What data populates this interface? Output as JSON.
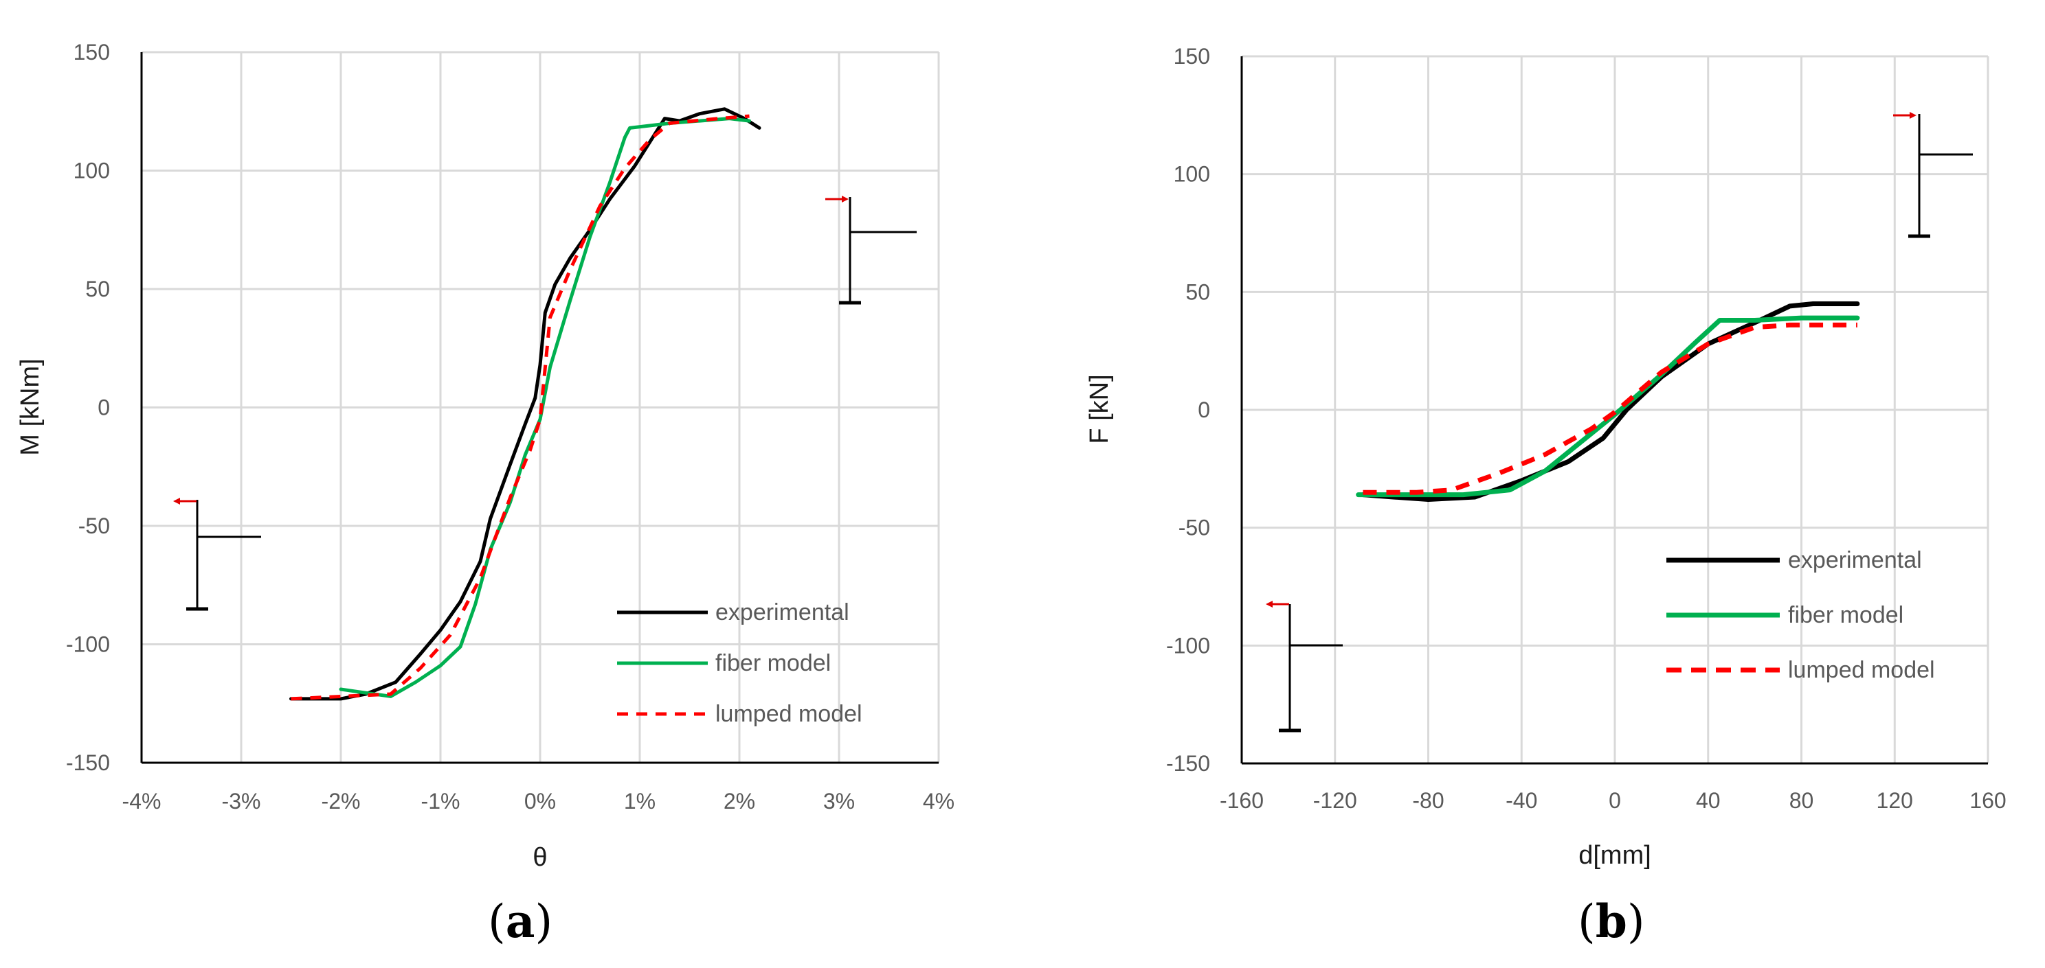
{
  "chart_data": [
    {
      "type": "line",
      "panel_label": "a",
      "xlabel": "θ",
      "ylabel": "M [kNm]",
      "xlim": [
        -0.04,
        0.04
      ],
      "ylim": [
        -150,
        150
      ],
      "x_ticks": [
        "-4%",
        "-3%",
        "-2%",
        "-1%",
        "0%",
        "1%",
        "2%",
        "3%",
        "4%"
      ],
      "y_ticks": [
        "150",
        "100",
        "50",
        "0",
        "-50",
        "-100",
        "-150"
      ],
      "grid": true,
      "legend_position": "bottom-right",
      "series": [
        {
          "name": "experimental",
          "color": "#000000",
          "style": "solid",
          "points": [
            [
              -0.025,
              -123
            ],
            [
              -0.02,
              -123
            ],
            [
              -0.0175,
              -121
            ],
            [
              -0.0145,
              -116
            ],
            [
              -0.012,
              -104
            ],
            [
              -0.01,
              -94
            ],
            [
              -0.008,
              -82
            ],
            [
              -0.006,
              -65
            ],
            [
              -0.005,
              -47
            ],
            [
              -0.003,
              -24
            ],
            [
              -0.0015,
              -7
            ],
            [
              -0.0005,
              4
            ],
            [
              0.0,
              18
            ],
            [
              0.0005,
              40
            ],
            [
              0.0015,
              52
            ],
            [
              0.003,
              63
            ],
            [
              0.005,
              75
            ],
            [
              0.007,
              88
            ],
            [
              0.0095,
              102
            ],
            [
              0.0125,
              122
            ],
            [
              0.014,
              121
            ],
            [
              0.016,
              124
            ],
            [
              0.0185,
              126
            ],
            [
              0.0205,
              122
            ],
            [
              0.022,
              118
            ]
          ]
        },
        {
          "name": "fiber model",
          "color": "#00b050",
          "style": "solid",
          "points": [
            [
              -0.02,
              -119
            ],
            [
              -0.015,
              -122
            ],
            [
              -0.0125,
              -116
            ],
            [
              -0.01,
              -109
            ],
            [
              -0.008,
              -101
            ],
            [
              -0.0065,
              -83
            ],
            [
              -0.005,
              -60
            ],
            [
              -0.003,
              -40
            ],
            [
              -0.0015,
              -20
            ],
            [
              0.0,
              -5
            ],
            [
              0.001,
              17
            ],
            [
              0.003,
              45
            ],
            [
              0.005,
              72
            ],
            [
              0.007,
              95
            ],
            [
              0.0085,
              114
            ],
            [
              0.009,
              118
            ],
            [
              0.011,
              119
            ],
            [
              0.013,
              120
            ],
            [
              0.016,
              121
            ],
            [
              0.019,
              122
            ],
            [
              0.021,
              121
            ]
          ]
        },
        {
          "name": "lumped model",
          "color": "#ff0000",
          "style": "dashed",
          "points": [
            [
              -0.025,
              -123
            ],
            [
              -0.015,
              -121
            ],
            [
              -0.012,
              -110
            ],
            [
              -0.009,
              -96
            ],
            [
              -0.006,
              -72
            ],
            [
              -0.003,
              -38
            ],
            [
              -0.001,
              -18
            ],
            [
              0.0,
              -5
            ],
            [
              0.001,
              38
            ],
            [
              0.003,
              58
            ],
            [
              0.006,
              85
            ],
            [
              0.0085,
              101
            ],
            [
              0.011,
              113
            ],
            [
              0.013,
              120
            ],
            [
              0.018,
              122
            ],
            [
              0.021,
              123
            ]
          ]
        }
      ]
    },
    {
      "type": "line",
      "panel_label": "b",
      "xlabel": "d[mm]",
      "ylabel": "F [kN]",
      "xlim": [
        -160,
        160
      ],
      "ylim": [
        -150,
        150
      ],
      "x_ticks": [
        "-160",
        "-120",
        "-80",
        "-40",
        "0",
        "40",
        "80",
        "120",
        "160"
      ],
      "y_ticks": [
        "150",
        "100",
        "50",
        "0",
        "-50",
        "-100",
        "-150"
      ],
      "grid": true,
      "legend_position": "bottom-right",
      "series": [
        {
          "name": "experimental",
          "color": "#000000",
          "style": "solid",
          "points": [
            [
              -108,
              -36
            ],
            [
              -95,
              -37
            ],
            [
              -80,
              -38
            ],
            [
              -60,
              -37
            ],
            [
              -40,
              -30
            ],
            [
              -20,
              -22
            ],
            [
              -5,
              -12
            ],
            [
              5,
              0
            ],
            [
              20,
              14
            ],
            [
              40,
              28
            ],
            [
              60,
              37
            ],
            [
              75,
              44
            ],
            [
              85,
              45
            ],
            [
              104,
              45
            ]
          ]
        },
        {
          "name": "fiber model",
          "color": "#00b050",
          "style": "solid",
          "points": [
            [
              -110,
              -36
            ],
            [
              -80,
              -36
            ],
            [
              -65,
              -36
            ],
            [
              -45,
              -34
            ],
            [
              -30,
              -26
            ],
            [
              -10,
              -10
            ],
            [
              0,
              -2
            ],
            [
              20,
              15
            ],
            [
              35,
              29
            ],
            [
              45,
              38
            ],
            [
              60,
              38
            ],
            [
              80,
              39
            ],
            [
              104,
              39
            ]
          ]
        },
        {
          "name": "lumped model",
          "color": "#ff0000",
          "style": "dashed",
          "points": [
            [
              -108,
              -35
            ],
            [
              -85,
              -35
            ],
            [
              -70,
              -34
            ],
            [
              -50,
              -27
            ],
            [
              -30,
              -19
            ],
            [
              -10,
              -8
            ],
            [
              0,
              -1
            ],
            [
              20,
              16
            ],
            [
              40,
              28
            ],
            [
              60,
              35
            ],
            [
              75,
              36
            ],
            [
              90,
              36
            ],
            [
              104,
              36
            ]
          ]
        }
      ]
    }
  ]
}
